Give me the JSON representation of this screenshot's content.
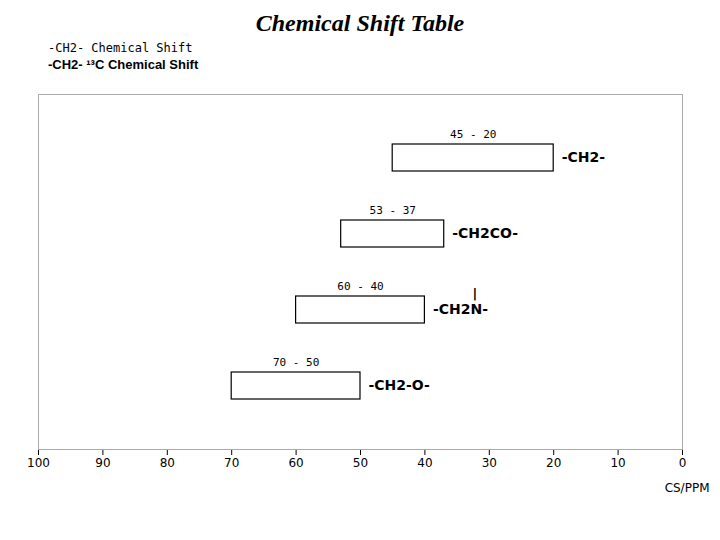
{
  "chart_data": {
    "type": "bar",
    "orientation": "horizontal",
    "title": "Chemical Shift Table",
    "x_label": "CS/PPM",
    "categories": [
      "-CH2-",
      "-CH2CO-",
      "-CH2N-",
      "-CH2-O-"
    ],
    "values": [
      [
        45,
        20
      ],
      [
        53,
        37
      ],
      [
        60,
        40
      ],
      [
        70,
        50
      ]
    ],
    "value_labels": [
      "45 - 20",
      "53 - 37",
      "60 - 40",
      "70 - 50"
    ],
    "data_labels": true,
    "xlim": [
      100,
      0
    ],
    "xticks": [
      0,
      10,
      20,
      30,
      40,
      50,
      60,
      70,
      80,
      90,
      100
    ],
    "tick_labels": "x",
    "grid": false,
    "annotations": [
      {
        "text": "-CH2-  Chemical Shift"
      },
      {
        "text": "-CH2- ¹³C Chemical Shift"
      },
      {
        "text": "|",
        "category": "-CH2N-"
      }
    ]
  }
}
